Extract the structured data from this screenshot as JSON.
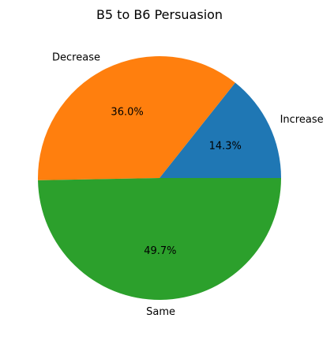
{
  "chart_data": {
    "type": "pie",
    "title": "B5 to B6 Persuasion",
    "slices": [
      {
        "label": "Increase",
        "value": 14.3,
        "pct_label": "14.3%",
        "color": "#1f77b4"
      },
      {
        "label": "Decrease",
        "value": 36.0,
        "pct_label": "36.0%",
        "color": "#ff7f0e"
      },
      {
        "label": "Same",
        "value": 49.7,
        "pct_label": "49.7%",
        "color": "#2ca02c"
      }
    ],
    "start_angle_deg": 0,
    "direction": "counterclockwise",
    "legend": "none"
  }
}
